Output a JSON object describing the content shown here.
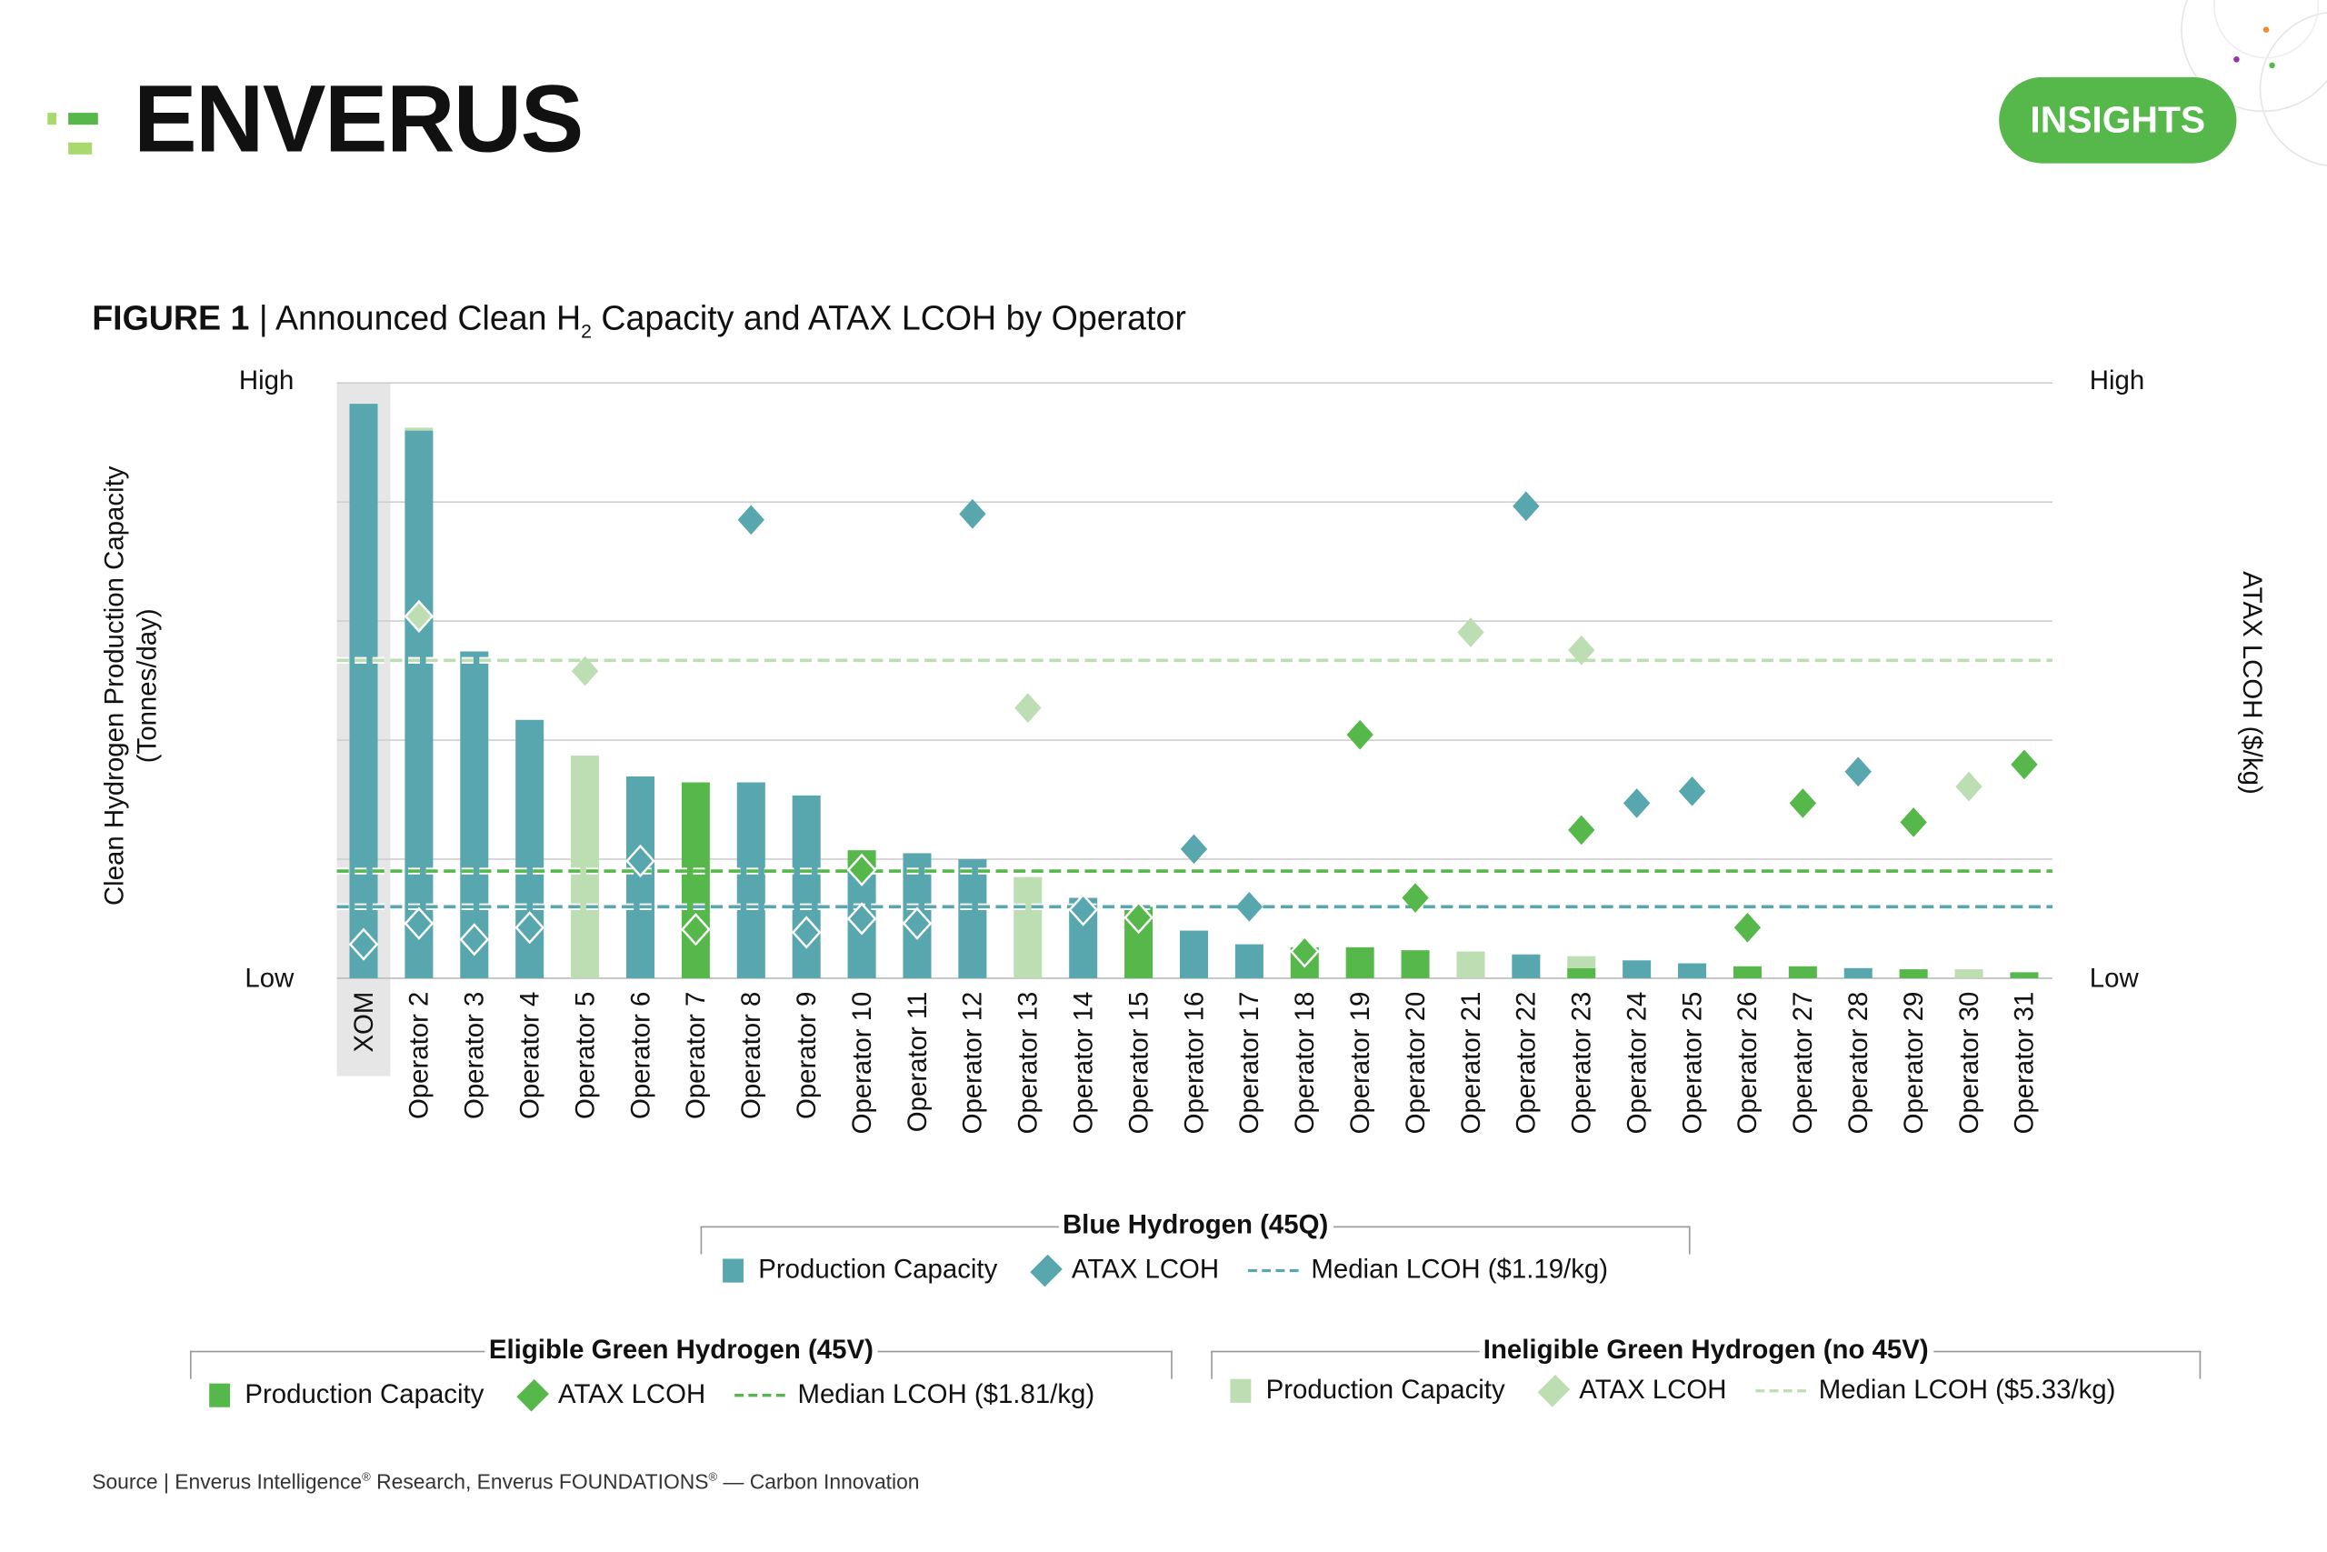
{
  "brand": {
    "logo": "ENVERUS",
    "badge": "INSIGHTS"
  },
  "figure": {
    "label": "FIGURE 1",
    "title_pre": "Announced Clean H",
    "title_sub": "2",
    "title_post": " Capacity and ATAX LCOH by Operator"
  },
  "colors": {
    "blue": "#58A6AE",
    "green": "#56B84A",
    "ineligible": "#BDDEB3",
    "highlight": "#E6E6E6"
  },
  "chart_data": {
    "type": "bar",
    "note_scale": "relative",
    "title": "Announced Clean H2 Capacity and ATAX LCOH by Operator",
    "ylabel_left": "Clean Hydrogen Production Capacity (Tonnes/day)",
    "ylabel_left_line1": "Clean Hydrogen Production Capacity",
    "ylabel_left_line2": "(Tonnes/day)",
    "ylabel_right": "ATAX LCOH ($/kg)",
    "ytick_high": "High",
    "ytick_low": "Low",
    "ylim": [
      0,
      100
    ],
    "grid": true,
    "highlighted_category": "XOM",
    "categories": [
      "XOM",
      "Operator 2",
      "Operator 3",
      "Operator 4",
      "Operator 5",
      "Operator 6",
      "Operator 7",
      "Operator 8",
      "Operator 9",
      "Operator 10",
      "Operator 11",
      "Operator 12",
      "Operator 13",
      "Operator 14",
      "Operator 15",
      "Operator 16",
      "Operator 17",
      "Operator 18",
      "Operator 19",
      "Operator 20",
      "Operator 21",
      "Operator 22",
      "Operator 23",
      "Operator 24",
      "Operator 25",
      "Operator 26",
      "Operator 27",
      "Operator 28",
      "Operator 29",
      "Operator 30",
      "Operator 31"
    ],
    "capacity_series": [
      {
        "name": "Blue Hydrogen (45Q) Production Capacity",
        "color": "#58A6AE",
        "values": [
          96.5,
          92,
          54.9,
          43.4,
          0,
          33.9,
          0,
          32.9,
          30.7,
          18.5,
          21,
          20,
          0,
          13.5,
          0,
          8,
          5.7,
          0,
          0,
          0,
          0,
          4,
          0,
          3,
          2.5,
          0,
          0,
          1.7,
          0,
          0,
          0
        ]
      },
      {
        "name": "Eligible Green Hydrogen (45V) Production Capacity",
        "color": "#56B84A",
        "values": [
          0,
          0,
          0,
          0,
          0,
          0,
          32.9,
          0,
          0,
          3,
          0,
          0,
          0,
          0,
          12,
          0,
          0,
          5.2,
          5.2,
          4.7,
          0,
          0,
          1.7,
          0,
          0,
          2,
          2,
          0,
          1.5,
          0,
          1
        ]
      },
      {
        "name": "Ineligible Green Hydrogen (no 45V) Production Capacity",
        "color": "#BDDEB3",
        "values": [
          0,
          0.5,
          0,
          0,
          37.4,
          0,
          0,
          0,
          0,
          0,
          0,
          0,
          17,
          0,
          0,
          0,
          0,
          0,
          0,
          0,
          4.5,
          0,
          2,
          0,
          0,
          0,
          0,
          0,
          0,
          1.5,
          0
        ]
      }
    ],
    "lcoh_series": [
      {
        "name": "Blue Hydrogen (45Q) ATAX LCOH",
        "color": "#58A6AE",
        "values": [
          5.7,
          9.2,
          6.5,
          8.5,
          null,
          19.7,
          null,
          77,
          7.7,
          10,
          9.2,
          78,
          null,
          11.5,
          null,
          21.7,
          12,
          null,
          null,
          null,
          null,
          79.3,
          null,
          29.4,
          31.4,
          null,
          null,
          34.7,
          null,
          null,
          null
        ]
      },
      {
        "name": "Eligible Green Hydrogen (45V) ATAX LCOH",
        "color": "#56B84A",
        "values": [
          null,
          null,
          null,
          null,
          null,
          null,
          8.2,
          null,
          null,
          18.2,
          null,
          null,
          null,
          null,
          10.2,
          null,
          null,
          4.5,
          40.9,
          13.5,
          null,
          null,
          24.9,
          null,
          null,
          8.5,
          29.4,
          null,
          26.2,
          null,
          35.9
        ]
      },
      {
        "name": "Ineligible Green Hydrogen (no 45V) ATAX LCOH",
        "color": "#BDDEB3",
        "values": [
          null,
          60.8,
          null,
          null,
          51.6,
          null,
          null,
          null,
          null,
          null,
          null,
          null,
          45.4,
          null,
          null,
          null,
          null,
          null,
          null,
          null,
          58.1,
          null,
          55.1,
          null,
          null,
          null,
          null,
          null,
          null,
          32.2,
          null
        ]
      }
    ],
    "medians": [
      {
        "name": "Median LCOH ($5.33/kg)",
        "color": "#BDDEB3",
        "value": 53.4
      },
      {
        "name": "Median LCOH ($1.81/kg)",
        "color": "#56B84A",
        "value": 18
      },
      {
        "name": "Median LCOH ($1.19/kg)",
        "color": "#58A6AE",
        "value": 12
      }
    ]
  },
  "legend": {
    "blue": {
      "title": "Blue Hydrogen (45Q)",
      "capacity": "Production Capacity",
      "lcoh": "ATAX LCOH",
      "median": "Median LCOH ($1.19/kg)"
    },
    "green": {
      "title": "Eligible Green Hydrogen (45V)",
      "capacity": "Production Capacity",
      "lcoh": "ATAX LCOH",
      "median": "Median LCOH ($1.81/kg)"
    },
    "ineligible": {
      "title": "Ineligible Green Hydrogen (no 45V)",
      "capacity": "Production Capacity",
      "lcoh": "ATAX LCOH",
      "median": "Median LCOH ($5.33/kg)"
    }
  },
  "source": {
    "pre": "Source | Enverus Intelligence",
    "mid": " Research, Enverus FOUNDATIONS",
    "post": " — Carbon Innovation",
    "reg": "®"
  }
}
